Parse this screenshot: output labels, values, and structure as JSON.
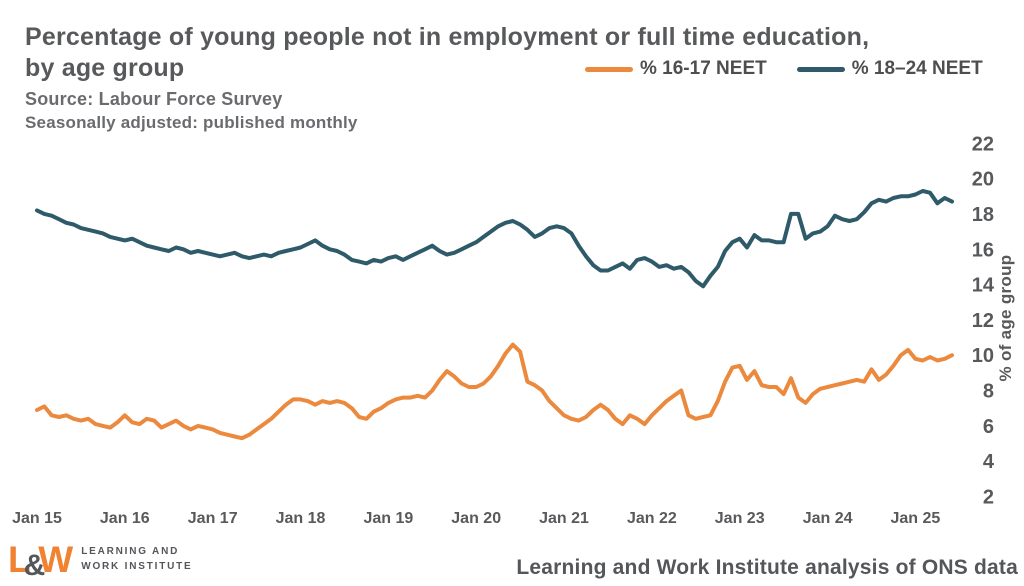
{
  "header": {
    "title_line1": "Percentage of young people not in employment or full time education,",
    "title_line2": "by age group",
    "source": "Source: Labour Force Survey",
    "adjustment_note": "Seasonally adjusted: published monthly"
  },
  "legend": [
    {
      "label": "% 16-17 NEET",
      "color": "#EB8A3E"
    },
    {
      "label": "% 18–24 NEET",
      "color": "#2E5A6A"
    }
  ],
  "colors": {
    "orange_series": "#EB8A3E",
    "teal_series": "#2E5A6A",
    "text_gray": "#58595B",
    "logo_orange": "#F08232",
    "gridline_gray": "#9B9B9B"
  },
  "chart_data": {
    "type": "line",
    "title": "Percentage of young people not in employment or full time education, by age group",
    "xlabel": "",
    "ylabel": "% of age group",
    "ylim": [
      2,
      22
    ],
    "y_ticks": [
      2,
      4,
      6,
      8,
      10,
      12,
      14,
      16,
      18,
      20,
      22
    ],
    "x_tick_labels": [
      "Jan 15",
      "Jan 16",
      "Jan 17",
      "Jan 18",
      "Jan 19",
      "Jan 20",
      "Jan 21",
      "Jan 22",
      "Jan 23",
      "Jan 24",
      "Jan 25"
    ],
    "x_unit": "month",
    "x_start": "Jan 2015",
    "x_end": "Jun 2025",
    "grid": "horizontal",
    "legend_position": "top-right",
    "series": [
      {
        "id": "16-17-neet",
        "name": "% 16-17 NEET",
        "color": "#EB8A3E",
        "values": [
          6.9,
          7.1,
          6.6,
          6.5,
          6.6,
          6.4,
          6.3,
          6.4,
          6.1,
          6.0,
          5.9,
          6.2,
          6.6,
          6.2,
          6.1,
          6.4,
          6.3,
          5.9,
          6.1,
          6.3,
          6.0,
          5.8,
          6.0,
          5.9,
          5.8,
          5.6,
          5.5,
          5.4,
          5.3,
          5.5,
          5.8,
          6.1,
          6.4,
          6.8,
          7.2,
          7.5,
          7.5,
          7.4,
          7.2,
          7.4,
          7.3,
          7.4,
          7.3,
          7.0,
          6.5,
          6.4,
          6.8,
          7.0,
          7.3,
          7.5,
          7.6,
          7.6,
          7.7,
          7.6,
          8.0,
          8.6,
          9.1,
          8.8,
          8.4,
          8.2,
          8.2,
          8.4,
          8.8,
          9.4,
          10.1,
          10.6,
          10.2,
          8.5,
          8.3,
          8.0,
          7.4,
          7.0,
          6.6,
          6.4,
          6.3,
          6.5,
          6.9,
          7.2,
          6.9,
          6.4,
          6.1,
          6.6,
          6.4,
          6.1,
          6.6,
          7.0,
          7.4,
          7.7,
          8.0,
          6.6,
          6.4,
          6.5,
          6.6,
          7.4,
          8.5,
          9.3,
          9.4,
          8.6,
          9.1,
          8.3,
          8.2,
          8.2,
          7.8,
          8.7,
          7.6,
          7.3,
          7.8,
          8.1,
          8.2,
          8.3,
          8.4,
          8.5,
          8.6,
          8.5,
          9.2,
          8.6,
          8.9,
          9.4,
          10.0,
          10.3,
          9.8,
          9.7,
          9.9,
          9.7,
          9.8,
          10.0
        ]
      },
      {
        "id": "18-24-neet",
        "name": "% 18–24 NEET",
        "color": "#2E5A6A",
        "values": [
          18.2,
          18.0,
          17.9,
          17.7,
          17.5,
          17.4,
          17.2,
          17.1,
          17.0,
          16.9,
          16.7,
          16.6,
          16.5,
          16.6,
          16.4,
          16.2,
          16.1,
          16.0,
          15.9,
          16.1,
          16.0,
          15.8,
          15.9,
          15.8,
          15.7,
          15.6,
          15.7,
          15.8,
          15.6,
          15.5,
          15.6,
          15.7,
          15.6,
          15.8,
          15.9,
          16.0,
          16.1,
          16.3,
          16.5,
          16.2,
          16.0,
          15.9,
          15.7,
          15.4,
          15.3,
          15.2,
          15.4,
          15.3,
          15.5,
          15.6,
          15.4,
          15.6,
          15.8,
          16.0,
          16.2,
          15.9,
          15.7,
          15.8,
          16.0,
          16.2,
          16.4,
          16.7,
          17.0,
          17.3,
          17.5,
          17.6,
          17.4,
          17.1,
          16.7,
          16.9,
          17.2,
          17.3,
          17.2,
          16.9,
          16.2,
          15.6,
          15.1,
          14.8,
          14.8,
          15.0,
          15.2,
          14.9,
          15.4,
          15.5,
          15.3,
          15.0,
          15.1,
          14.9,
          15.0,
          14.7,
          14.2,
          13.9,
          14.5,
          15.0,
          15.9,
          16.4,
          16.6,
          16.1,
          16.8,
          16.5,
          16.5,
          16.4,
          16.4,
          18.0,
          18.0,
          16.6,
          16.9,
          17.0,
          17.3,
          17.9,
          17.7,
          17.6,
          17.7,
          18.1,
          18.6,
          18.8,
          18.7,
          18.9,
          19.0,
          19.0,
          19.1,
          19.3,
          19.2,
          18.6,
          18.9,
          18.7
        ]
      }
    ]
  },
  "footer": {
    "logo": {
      "mark_l": "L",
      "mark_amp": "&",
      "mark_w": "W",
      "caption_line1": "LEARNING AND",
      "caption_line2": "WORK INSTITUTE"
    },
    "attribution": "Learning and Work Institute analysis of ONS data"
  }
}
